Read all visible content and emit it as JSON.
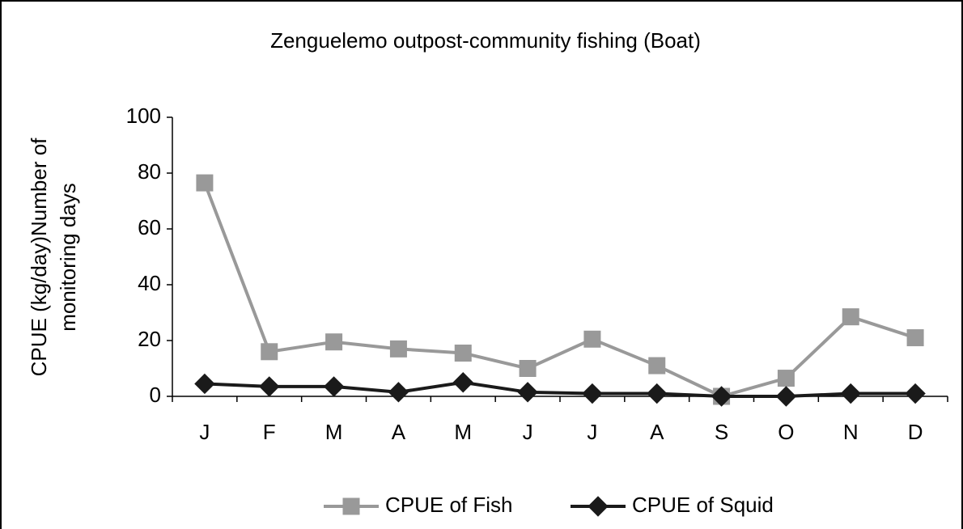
{
  "chart_data": {
    "type": "line",
    "title": "Zenguelemo outpost-community fishing (Boat)",
    "ylabel": [
      "CPUE  (kg/day)Number of",
      "monitoring days"
    ],
    "categories": [
      "J",
      "F",
      "M",
      "A",
      "M",
      "J",
      "J",
      "A",
      "S",
      "O",
      "N",
      "D"
    ],
    "series": [
      {
        "name": "CPUE of Fish",
        "color": "#999999",
        "marker": "square",
        "values": [
          76.5,
          16,
          19.5,
          17,
          15.5,
          10,
          20.5,
          11,
          0,
          6.5,
          28.5,
          21
        ]
      },
      {
        "name": "CPUE of Squid",
        "color": "#1a1a1a",
        "marker": "diamond",
        "values": [
          4.5,
          3.5,
          3.5,
          1.5,
          5,
          1.5,
          1,
          1,
          0,
          0,
          1,
          1
        ]
      }
    ],
    "ylim": [
      0,
      100
    ],
    "yticks": [
      0,
      20,
      40,
      60,
      80,
      100
    ],
    "legend": "bottom"
  }
}
